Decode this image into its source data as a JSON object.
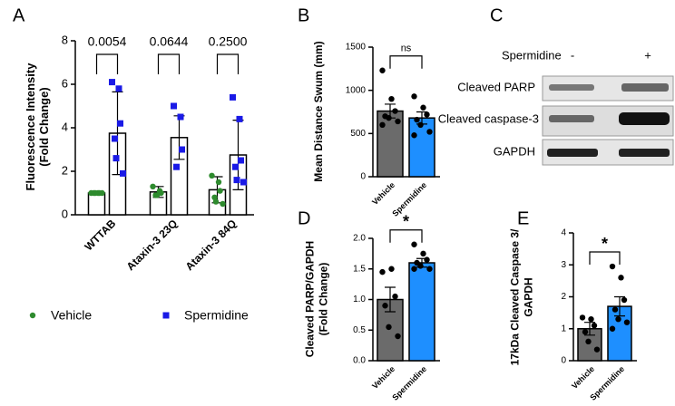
{
  "chart_data": [
    {
      "type": "grouped-bar",
      "panel_label": "A",
      "ylabel": [
        "Fluorescence Intensity",
        "(Fold Change)"
      ],
      "categories": [
        "WTTAB",
        "Ataxin-3 23Q",
        "Ataxin-3 84Q"
      ],
      "ylim": [
        0,
        8
      ],
      "yticks": [
        0,
        2,
        4,
        6,
        8
      ],
      "annotations": [
        "0.0054",
        "0.0644",
        "0.2500"
      ],
      "series": [
        {
          "name": "Vehicle",
          "color": "#2e8b2e",
          "marker": "circle",
          "values": [
            1.0,
            1.05,
            1.15
          ],
          "errors": [
            0.05,
            0.25,
            0.6
          ],
          "points": [
            [
              1,
              1,
              1,
              1,
              1,
              1
            ],
            [
              1.3,
              1.1,
              1.0,
              0.9,
              0.9
            ],
            [
              1.8,
              1.5,
              1.1,
              0.8,
              0.6,
              0.5
            ]
          ]
        },
        {
          "name": "Spermidine",
          "color": "#1a1ae6",
          "marker": "square",
          "values": [
            3.75,
            3.55,
            2.75
          ],
          "errors": [
            1.9,
            1.0,
            1.6
          ],
          "points": [
            [
              6.1,
              5.8,
              4.2,
              3.5,
              2.6,
              1.9
            ],
            [
              5.0,
              4.5,
              3.0,
              2.2
            ],
            [
              5.4,
              4.4,
              2.5,
              2.2,
              1.6,
              1.5
            ]
          ]
        }
      ]
    },
    {
      "type": "bar",
      "panel_label": "B",
      "ylabel": [
        "Mean Distance Swum (mm)"
      ],
      "categories": [
        "Vehicle",
        "Spermidine"
      ],
      "colors": [
        "#6b6b6b",
        "#1e8fff"
      ],
      "values": [
        760,
        680
      ],
      "errors": [
        80,
        70
      ],
      "points": [
        [
          1230,
          900,
          760,
          700,
          680,
          640,
          600
        ],
        [
          930,
          800,
          720,
          660,
          600,
          520,
          480
        ]
      ],
      "ylim": [
        0,
        1500
      ],
      "yticks": [
        0,
        500,
        1000,
        1500
      ],
      "annotation": "ns"
    },
    {
      "type": "bar",
      "panel_label": "D",
      "ylabel": [
        "Cleaved PARP/GAPDH",
        "(Fold Change)"
      ],
      "categories": [
        "Vehicle",
        "Spermidine"
      ],
      "colors": [
        "#6b6b6b",
        "#1e8fff"
      ],
      "values": [
        1.0,
        1.6
      ],
      "errors": [
        0.2,
        0.07
      ],
      "points": [
        [
          1.45,
          1.5,
          1.05,
          0.9,
          0.55,
          0.4
        ],
        [
          1.9,
          1.75,
          1.65,
          1.6,
          1.55,
          1.5,
          1.5
        ]
      ],
      "ylim": [
        0,
        2
      ],
      "yticks": [
        {
          "value": 0,
          "label": "0.0"
        },
        0.5,
        {
          "value": 1,
          "label": "1.0"
        },
        1.5,
        {
          "value": 2,
          "label": "2.0"
        }
      ],
      "annotation": "*"
    },
    {
      "type": "bar",
      "panel_label": "E",
      "ylabel": [
        "17kDa Cleaved Caspase 3/",
        "GAPDH"
      ],
      "categories": [
        "Vehicle",
        "Spermidine"
      ],
      "colors": [
        "#6b6b6b",
        "#1e8fff"
      ],
      "values": [
        1.0,
        1.7
      ],
      "errors": [
        0.2,
        0.3
      ],
      "points": [
        [
          1.35,
          1.3,
          1.1,
          0.9,
          0.6,
          0.35
        ],
        [
          2.95,
          2.6,
          1.9,
          1.6,
          1.3,
          1.2,
          1.0
        ]
      ],
      "ylim": [
        0,
        4
      ],
      "yticks": [
        0,
        1,
        2,
        3,
        4
      ],
      "annotation": "*"
    }
  ],
  "blot": {
    "panel_label": "C",
    "treatment": "Spermidine",
    "lanes": [
      "-",
      "+"
    ],
    "rows": [
      "Cleaved PARP",
      "Cleaved caspase-3",
      "GAPDH"
    ]
  }
}
